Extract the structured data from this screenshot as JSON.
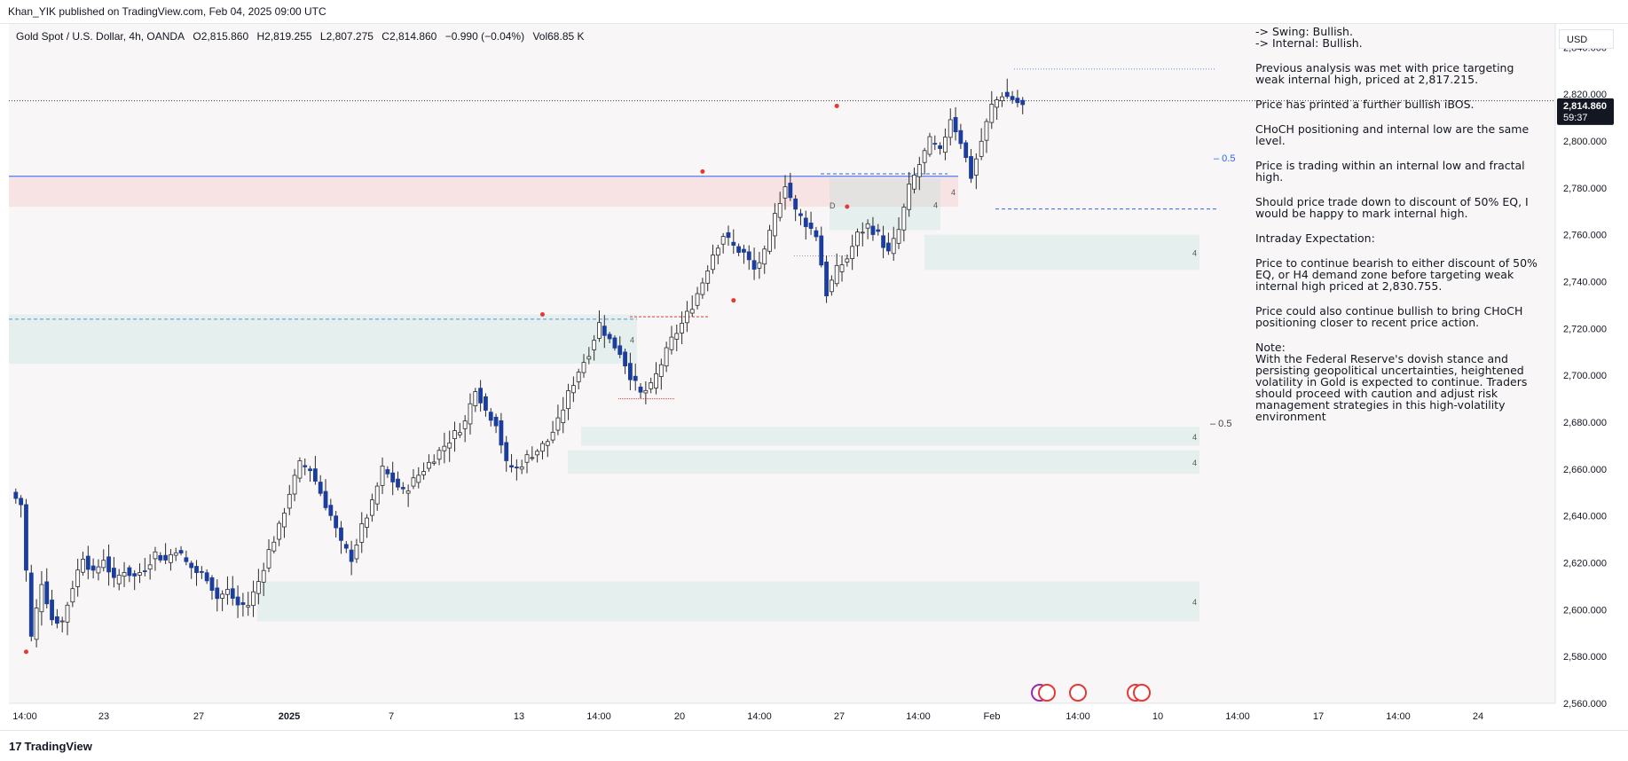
{
  "header": {
    "publisher_text": "Khan_YIK published on TradingView.com, Feb 04, 2025 09:00 UTC"
  },
  "symbol": {
    "name": "Gold Spot / U.S. Dollar, 4h, OANDA",
    "open": "O2,815.860",
    "high": "H2,819.255",
    "low": "L2,807.275",
    "close": "C2,814.860",
    "change": "−0.990 (−0.04%)",
    "volume": "Vol68.85 K"
  },
  "currency": "USD",
  "last_price": {
    "value": "2,814.860",
    "countdown": "59:37"
  },
  "analysis": {
    "swing": "-> Swing:  Bullish.",
    "internal": "-> Internal:  Bullish.",
    "p1": "Previous analysis was met with price targeting weak internal high, priced at 2,817.215.",
    "p2": "Price has printed a further bullish iBOS.",
    "p3": "CHoCH positioning and internal low are the same level.",
    "p4": "Price is trading within an internal low and fractal high.",
    "p5": "Should price trade down to discount of 50% EQ, I would be happy to mark internal high.",
    "p6": "Intraday Expectation:",
    "p7": "Price to continue bearish to either discount of 50% EQ, or H4 demand zone before targeting weak internal high priced at 2,830.755.",
    "p8": "Price could also continue bullish to bring CHoCH positioning closer to recent price action.",
    "note_title": "Note:",
    "note": "With the Federal Reserve's dovish stance and persisting geopolitical uncertainties, heightened volatility in Gold is expected to continue. Traders should proceed with caution and adjust risk management strategies in this high-volatility environment"
  },
  "footer": {
    "brand": "TradingView"
  },
  "chart_data": {
    "type": "candlestick",
    "title": "Gold Spot / U.S. Dollar, 4h, OANDA",
    "ylim": [
      2560,
      2850
    ],
    "y_ticks": [
      2840,
      2820,
      2800,
      2780,
      2760,
      2740,
      2720,
      2700,
      2680,
      2660,
      2640,
      2620,
      2600,
      2580,
      2560
    ],
    "y_tick_labels": [
      "2,840.000",
      "2,820.000",
      "2,800.000",
      "2,780.000",
      "2,760.000",
      "2,740.000",
      "2,720.000",
      "2,700.000",
      "2,680.000",
      "2,660.000",
      "2,640.000",
      "2,620.000",
      "2,600.000",
      "2,580.000",
      "2,560.000"
    ],
    "x_tick_labels": [
      "14:00",
      "23",
      "27",
      "2025",
      "7",
      "13",
      "14:00",
      "20",
      "14:00",
      "27",
      "14:00",
      "Feb",
      "14:00",
      "10",
      "14:00",
      "17",
      "14:00",
      "24"
    ],
    "bar_count": 180,
    "anchors": [
      [
        0,
        2650
      ],
      [
        2,
        2645
      ],
      [
        4,
        2588
      ],
      [
        6,
        2612
      ],
      [
        8,
        2596
      ],
      [
        10,
        2595
      ],
      [
        12,
        2610
      ],
      [
        14,
        2623
      ],
      [
        16,
        2615
      ],
      [
        18,
        2622
      ],
      [
        20,
        2612
      ],
      [
        22,
        2617
      ],
      [
        24,
        2614
      ],
      [
        26,
        2618
      ],
      [
        28,
        2624
      ],
      [
        30,
        2621
      ],
      [
        32,
        2626
      ],
      [
        34,
        2620
      ],
      [
        36,
        2616
      ],
      [
        38,
        2614
      ],
      [
        40,
        2605
      ],
      [
        42,
        2608
      ],
      [
        44,
        2602
      ],
      [
        46,
        2602
      ],
      [
        48,
        2612
      ],
      [
        50,
        2625
      ],
      [
        52,
        2635
      ],
      [
        54,
        2650
      ],
      [
        56,
        2662
      ],
      [
        58,
        2660
      ],
      [
        60,
        2650
      ],
      [
        62,
        2640
      ],
      [
        64,
        2628
      ],
      [
        66,
        2622
      ],
      [
        68,
        2635
      ],
      [
        70,
        2645
      ],
      [
        72,
        2660
      ],
      [
        74,
        2655
      ],
      [
        76,
        2650
      ],
      [
        78,
        2655
      ],
      [
        80,
        2660
      ],
      [
        82,
        2665
      ],
      [
        84,
        2670
      ],
      [
        86,
        2675
      ],
      [
        88,
        2680
      ],
      [
        90,
        2695
      ],
      [
        92,
        2685
      ],
      [
        94,
        2680
      ],
      [
        96,
        2662
      ],
      [
        98,
        2660
      ],
      [
        100,
        2665
      ],
      [
        102,
        2668
      ],
      [
        104,
        2672
      ],
      [
        106,
        2680
      ],
      [
        108,
        2692
      ],
      [
        110,
        2702
      ],
      [
        112,
        2710
      ],
      [
        114,
        2722
      ],
      [
        116,
        2715
      ],
      [
        118,
        2710
      ],
      [
        120,
        2700
      ],
      [
        122,
        2692
      ],
      [
        124,
        2695
      ],
      [
        126,
        2705
      ],
      [
        128,
        2715
      ],
      [
        130,
        2722
      ],
      [
        132,
        2730
      ],
      [
        134,
        2740
      ],
      [
        136,
        2752
      ],
      [
        138,
        2760
      ],
      [
        140,
        2755
      ],
      [
        142,
        2752
      ],
      [
        144,
        2745
      ],
      [
        146,
        2752
      ],
      [
        148,
        2768
      ],
      [
        150,
        2782
      ],
      [
        152,
        2770
      ],
      [
        154,
        2765
      ],
      [
        156,
        2760
      ],
      [
        158,
        2735
      ],
      [
        160,
        2745
      ],
      [
        162,
        2750
      ],
      [
        164,
        2760
      ],
      [
        166,
        2764
      ],
      [
        168,
        2760
      ],
      [
        170,
        2752
      ],
      [
        172,
        2762
      ],
      [
        174,
        2780
      ],
      [
        176,
        2790
      ],
      [
        178,
        2800
      ],
      [
        180,
        2795
      ],
      [
        182,
        2810
      ],
      [
        184,
        2800
      ],
      [
        186,
        2785
      ],
      [
        188,
        2800
      ],
      [
        190,
        2815
      ],
      [
        192,
        2820
      ],
      [
        194,
        2818
      ],
      [
        196,
        2815
      ]
    ],
    "zones": [
      {
        "label": "4",
        "from": 2705,
        "to": 2726
      },
      {
        "label": "4",
        "from": 2772,
        "to": 2785
      },
      {
        "label": "4",
        "from": 2762,
        "to": 2784
      },
      {
        "label": "4",
        "from": 2745,
        "to": 2760
      },
      {
        "label": "4",
        "from": 2670,
        "to": 2678
      },
      {
        "label": "4",
        "from": 2658,
        "to": 2668
      },
      {
        "label": "4",
        "from": 2595,
        "to": 2612
      }
    ],
    "levels": [
      {
        "value": 2817.215,
        "label": ""
      },
      {
        "value": 2830.755,
        "label": ""
      },
      {
        "value": 2786,
        "label": ""
      },
      {
        "value": 2724,
        "label": ""
      },
      {
        "value": 2771,
        "label": ""
      }
    ],
    "eq_labels": [
      "0.5",
      "0.5"
    ],
    "zone_label_d": "D"
  }
}
